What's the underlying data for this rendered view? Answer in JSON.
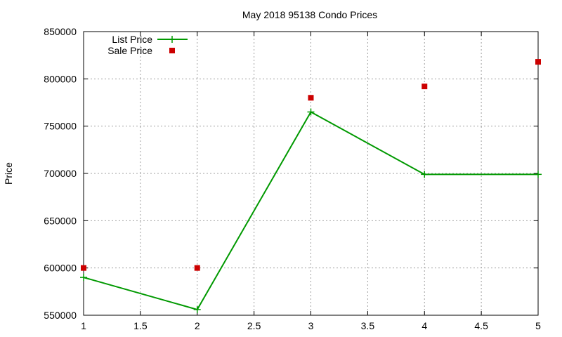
{
  "chart_data": {
    "type": "line",
    "title": "May 2018 95138 Condo Prices",
    "xlabel": "",
    "ylabel": "Price",
    "xlim": [
      1,
      5
    ],
    "ylim": [
      550000,
      850000
    ],
    "xticks": [
      1,
      1.5,
      2,
      2.5,
      3,
      3.5,
      4,
      4.5,
      5
    ],
    "yticks": [
      550000,
      600000,
      650000,
      700000,
      750000,
      800000,
      850000
    ],
    "xtick_labels": [
      "1",
      "1.5",
      "2",
      "2.5",
      "3",
      "3.5",
      "4",
      "4.5",
      "5"
    ],
    "ytick_labels": [
      "550000",
      "600000",
      "650000",
      "700000",
      "750000",
      "800000",
      "850000"
    ],
    "grid": true,
    "legend_position": "top-left",
    "series": [
      {
        "name": "List Price",
        "style": "linespoints",
        "marker": "plus",
        "color": "#009900",
        "x": [
          1,
          2,
          3,
          4,
          5
        ],
        "y": [
          590000,
          556000,
          765000,
          699000,
          699000
        ]
      },
      {
        "name": "Sale Price",
        "style": "points",
        "marker": "square",
        "color": "#cc0000",
        "x": [
          1,
          2,
          3,
          4,
          5
        ],
        "y": [
          600000,
          600000,
          780000,
          792000,
          818000
        ]
      }
    ]
  }
}
